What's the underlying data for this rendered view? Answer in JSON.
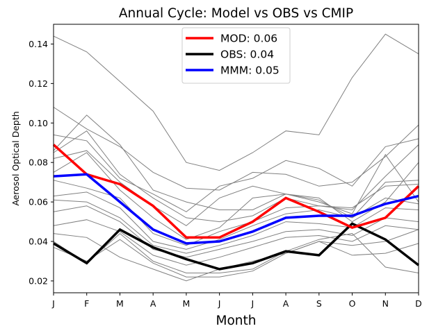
{
  "chart_data": {
    "type": "line",
    "title": "Annual Cycle: Model vs OBS vs CMIP",
    "xlabel": "Month",
    "ylabel": "Aerosol Optical Depth",
    "categories": [
      "J",
      "F",
      "M",
      "A",
      "M",
      "J",
      "J",
      "A",
      "S",
      "O",
      "N",
      "D"
    ],
    "ylim": [
      0.014,
      0.15
    ],
    "yticks": [
      "0.02",
      "0.04",
      "0.06",
      "0.08",
      "0.10",
      "0.12",
      "0.14"
    ],
    "ytick_values": [
      0.02,
      0.04,
      0.06,
      0.08,
      0.1,
      0.12,
      0.14
    ],
    "legend_position": "upper center",
    "series": [
      {
        "name": "MOD: 0.06",
        "color": "#ff0000",
        "values": [
          0.089,
          0.074,
          0.069,
          0.058,
          0.042,
          0.042,
          0.05,
          0.062,
          0.055,
          0.047,
          0.052,
          0.068
        ]
      },
      {
        "name": "OBS: 0.04",
        "color": "#000000",
        "values": [
          0.039,
          0.029,
          0.046,
          0.037,
          0.031,
          0.026,
          0.029,
          0.035,
          0.033,
          0.049,
          0.041,
          0.028
        ]
      },
      {
        "name": "MMM: 0.05",
        "color": "#0000ff",
        "values": [
          0.073,
          0.074,
          0.06,
          0.046,
          0.039,
          0.04,
          0.045,
          0.052,
          0.053,
          0.053,
          0.059,
          0.063
        ]
      }
    ],
    "cmip_color": "#808080",
    "cmip_series": [
      [
        0.144,
        0.136,
        0.121,
        0.106,
        0.08,
        0.076,
        0.085,
        0.096,
        0.094,
        0.123,
        0.145,
        0.135
      ],
      [
        0.108,
        0.097,
        0.088,
        0.075,
        0.067,
        0.066,
        0.075,
        0.074,
        0.068,
        0.07,
        0.083,
        0.099
      ],
      [
        0.094,
        0.091,
        0.072,
        0.064,
        0.055,
        0.068,
        0.072,
        0.081,
        0.077,
        0.068,
        0.088,
        0.092
      ],
      [
        0.086,
        0.104,
        0.089,
        0.066,
        0.06,
        0.056,
        0.056,
        0.064,
        0.06,
        0.054,
        0.084,
        0.06
      ],
      [
        0.085,
        0.096,
        0.074,
        0.062,
        0.052,
        0.05,
        0.053,
        0.062,
        0.058,
        0.056,
        0.073,
        0.089
      ],
      [
        0.082,
        0.086,
        0.07,
        0.058,
        0.048,
        0.062,
        0.068,
        0.064,
        0.062,
        0.05,
        0.06,
        0.08
      ],
      [
        0.075,
        0.085,
        0.066,
        0.052,
        0.041,
        0.047,
        0.062,
        0.064,
        0.061,
        0.052,
        0.07,
        0.071
      ],
      [
        0.071,
        0.067,
        0.062,
        0.044,
        0.038,
        0.045,
        0.05,
        0.057,
        0.058,
        0.057,
        0.068,
        0.069
      ],
      [
        0.063,
        0.065,
        0.057,
        0.04,
        0.036,
        0.041,
        0.048,
        0.054,
        0.056,
        0.052,
        0.062,
        0.059
      ],
      [
        0.061,
        0.06,
        0.052,
        0.038,
        0.034,
        0.038,
        0.043,
        0.05,
        0.049,
        0.047,
        0.057,
        0.056
      ],
      [
        0.055,
        0.058,
        0.05,
        0.036,
        0.032,
        0.036,
        0.04,
        0.045,
        0.046,
        0.043,
        0.052,
        0.05
      ],
      [
        0.048,
        0.051,
        0.045,
        0.033,
        0.028,
        0.032,
        0.037,
        0.042,
        0.043,
        0.04,
        0.048,
        0.046
      ],
      [
        0.044,
        0.042,
        0.032,
        0.026,
        0.02,
        0.026,
        0.03,
        0.034,
        0.04,
        0.038,
        0.04,
        0.046
      ],
      [
        0.037,
        0.03,
        0.041,
        0.029,
        0.022,
        0.022,
        0.025,
        0.034,
        0.04,
        0.033,
        0.034,
        0.039
      ],
      [
        0.04,
        0.029,
        0.044,
        0.03,
        0.024,
        0.024,
        0.026,
        0.035,
        0.041,
        0.044,
        0.027,
        0.024
      ]
    ]
  }
}
